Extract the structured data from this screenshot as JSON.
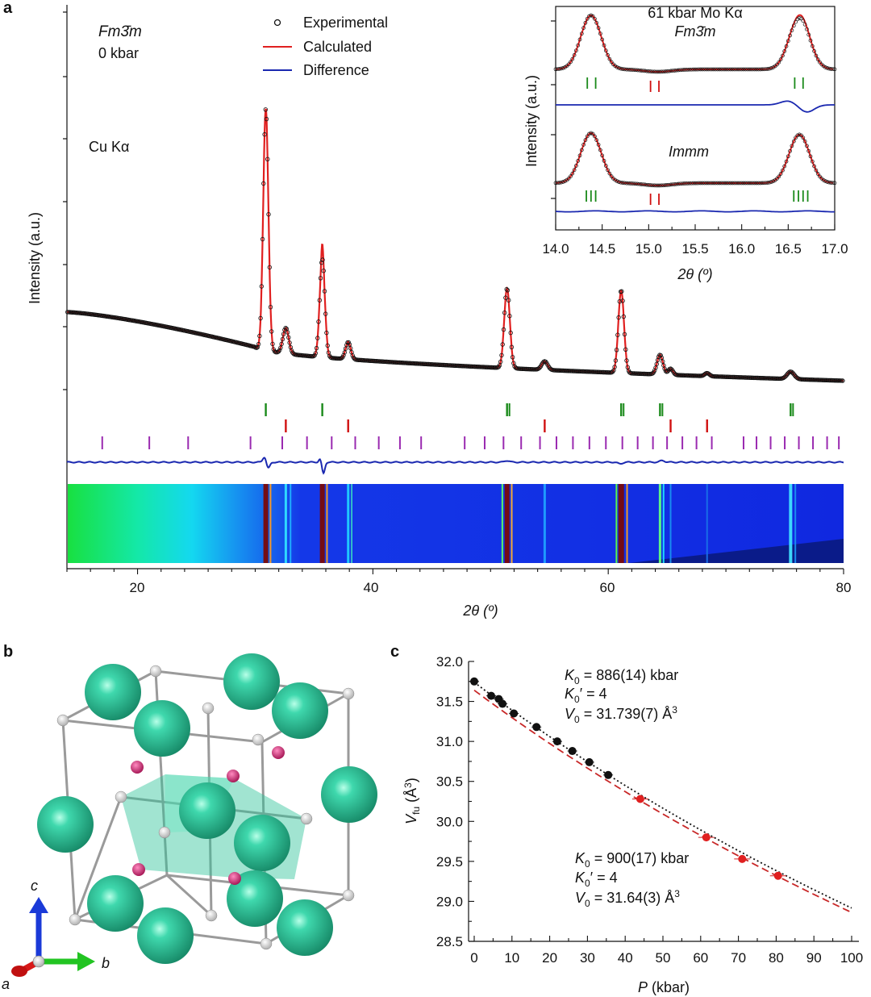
{
  "panel_a": {
    "label": "a",
    "space_group": "Fm3̄m",
    "pressure": "0 kbar",
    "radiation": "Cu Kα",
    "ylabel": "Intensity (a.u.)",
    "xlabel": "2θ (º)",
    "legend": [
      "Experimental",
      "Calculated",
      "Difference"
    ],
    "xticks": [
      "20",
      "40",
      "60",
      "80"
    ]
  },
  "inset": {
    "title": "61 kbar Mo Kα",
    "top_label": "Fm3̄m",
    "bottom_label": "Immm",
    "ylabel": "Intensity (a.u.)",
    "xlabel": "2θ (º)",
    "xticks": [
      "14.0",
      "14.5",
      "15.0",
      "15.5",
      "16.0",
      "16.5",
      "17.0"
    ]
  },
  "panel_b": {
    "label": "b",
    "axis_labels": [
      "c",
      "b",
      "a"
    ]
  },
  "panel_c": {
    "label": "c",
    "xlabel": "P (kbar)",
    "ylabel": "Vfu (Å3)",
    "xticks": [
      "0",
      "10",
      "20",
      "30",
      "40",
      "50",
      "60",
      "70",
      "80",
      "90",
      "100"
    ],
    "yticks": [
      "28.5",
      "29.0",
      "29.5",
      "30.0",
      "30.5",
      "31.0",
      "31.5",
      "32.0"
    ],
    "fit1": [
      "K0 = 886(14) kbar",
      "K0′ = 4",
      "V0 = 31.739(7) Å3"
    ],
    "fit2": [
      "K0 = 900(17) kbar",
      "K0′ = 4",
      "V0 = 31.64(3) Å3"
    ]
  },
  "colors": {
    "calculated": "#e02020",
    "difference": "#1a28b0",
    "tick_green": "#1a8a1a",
    "tick_red": "#d01010",
    "tick_purple": "#9a2ab0",
    "atom": "#2fc49a",
    "small_atom": "#d0186e"
  },
  "chart_data": [
    {
      "type": "line",
      "title": "",
      "xlabel": "2θ (º)",
      "ylabel": "Intensity (a.u.)",
      "xlim": [
        14,
        80
      ],
      "series": [
        {
          "name": "Experimental",
          "x": [
            14,
            20,
            25,
            29,
            30.9,
            32.6,
            35.7,
            37.9,
            51.4,
            54.6,
            61.1,
            64.4,
            65.3,
            68.4,
            75.5,
            80
          ],
          "values": [
            1.12,
            1.0,
            0.79,
            0.55,
            4.45,
            0.62,
            2.1,
            0.45,
            1.5,
            0.2,
            1.5,
            0.44,
            0.18,
            0.07,
            0.14,
            0.0
          ]
        },
        {
          "name": "Calculated",
          "x": [
            14,
            20,
            25,
            29,
            30.9,
            32.6,
            35.7,
            37.9,
            51.4,
            54.6,
            61.1,
            64.4,
            65.3,
            68.4,
            75.5,
            80
          ],
          "values": [
            1.12,
            1.0,
            0.79,
            0.55,
            4.45,
            0.62,
            2.3,
            0.45,
            1.5,
            0.2,
            1.5,
            0.44,
            0.18,
            0.07,
            0.14,
            0.0
          ]
        },
        {
          "name": "Difference"
        }
      ]
    },
    {
      "type": "line",
      "title": "61 kbar Mo Kα",
      "xlabel": "2θ (º)",
      "ylabel": "Intensity (a.u.)",
      "xlim": [
        14.0,
        17.0
      ],
      "peaks": [
        14.38,
        16.62
      ]
    },
    {
      "type": "scatter",
      "xlabel": "P (kbar)",
      "ylabel": "Vfu (Å3)",
      "xlim": [
        0,
        100
      ],
      "ylim": [
        28.5,
        32.0
      ],
      "series": [
        {
          "x": [
            0,
            4.5,
            6.5,
            7.5,
            10.5,
            16.5,
            22,
            26,
            30.5,
            35.5
          ],
          "values": [
            31.75,
            31.57,
            31.53,
            31.47,
            31.35,
            31.18,
            31.0,
            30.88,
            30.74,
            30.58
          ]
        },
        {
          "x": [
            44,
            61.5,
            71,
            80.5
          ],
          "values": [
            30.28,
            29.8,
            29.53,
            29.32
          ]
        }
      ]
    }
  ]
}
